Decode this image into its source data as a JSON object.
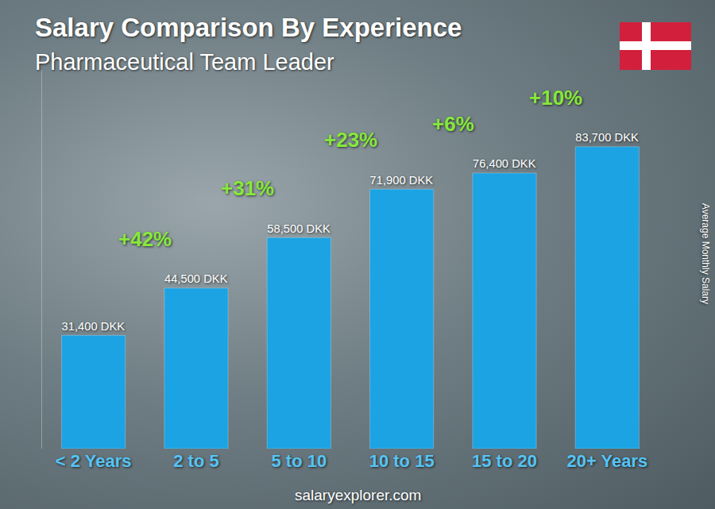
{
  "chart_data": {
    "type": "bar",
    "title": "Salary Comparison By Experience",
    "subtitle": "Pharmaceutical Team Leader",
    "y_label": "Average Monthly Salary",
    "source": "salaryexplorer.com",
    "categories": [
      "< 2 Years",
      "2 to 5",
      "5 to 10",
      "10 to 15",
      "15 to 20",
      "20+ Years"
    ],
    "values": [
      31400,
      44500,
      58500,
      71900,
      76400,
      83700
    ],
    "value_labels": [
      "31,400 DKK",
      "44,500 DKK",
      "58,500 DKK",
      "71,900 DKK",
      "76,400 DKK",
      "83,700 DKK"
    ],
    "data_labels": true,
    "color": "#1ba3e3",
    "annotations": [
      "+42%",
      "+31%",
      "+23%",
      "+6%",
      "+10%"
    ],
    "ylim": [
      0,
      105000
    ],
    "tick_labels": "x",
    "grid": false
  }
}
